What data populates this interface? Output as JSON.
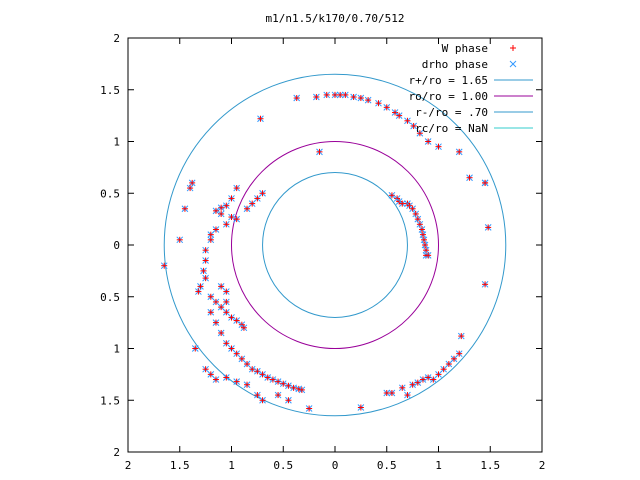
{
  "chart_data": {
    "type": "scatter",
    "title": "m1/n1.5/k170/0.70/512",
    "xlim": [
      -2,
      2
    ],
    "ylim": [
      -2,
      2
    ],
    "grid": false,
    "legend_position": "top-right",
    "x_ticks": [
      {
        "v": -2,
        "label": "2"
      },
      {
        "v": -1.5,
        "label": "1.5"
      },
      {
        "v": -1,
        "label": "1"
      },
      {
        "v": -0.5,
        "label": "0.5"
      },
      {
        "v": 0,
        "label": "0"
      },
      {
        "v": 0.5,
        "label": "0.5"
      },
      {
        "v": 1,
        "label": "1"
      },
      {
        "v": 1.5,
        "label": "1.5"
      },
      {
        "v": 2,
        "label": "2"
      }
    ],
    "y_ticks": [
      {
        "v": 2,
        "label": "2"
      },
      {
        "v": 1.5,
        "label": "1.5"
      },
      {
        "v": 1,
        "label": "1"
      },
      {
        "v": 0.5,
        "label": "0.5"
      },
      {
        "v": 0,
        "label": "0"
      },
      {
        "v": -0.5,
        "label": "0.5"
      },
      {
        "v": -1,
        "label": "1"
      },
      {
        "v": -1.5,
        "label": "1.5"
      },
      {
        "v": -2,
        "label": "2"
      }
    ],
    "circles": [
      {
        "name": "r+/ro = 1.65",
        "r": 1.65,
        "color": "#3399cc"
      },
      {
        "name": "ro/ro = 1.00",
        "r": 1.0,
        "color": "#990099"
      },
      {
        "name": "r-/ro = .70",
        "r": 0.7,
        "color": "#3399cc"
      },
      {
        "name": "rc/ro = NaN",
        "r": null,
        "color": "#33cccc"
      }
    ],
    "series": [
      {
        "name": "W phase",
        "marker": "+",
        "color": "#ff0000"
      },
      {
        "name": "drho phase",
        "marker": "x",
        "color": "#3399ff"
      }
    ],
    "points": [
      [
        -0.37,
        1.42
      ],
      [
        -0.18,
        1.43
      ],
      [
        -0.08,
        1.45
      ],
      [
        0.0,
        1.45
      ],
      [
        0.05,
        1.45
      ],
      [
        0.1,
        1.45
      ],
      [
        0.18,
        1.43
      ],
      [
        0.25,
        1.42
      ],
      [
        0.32,
        1.4
      ],
      [
        0.42,
        1.37
      ],
      [
        0.5,
        1.33
      ],
      [
        0.58,
        1.28
      ],
      [
        0.62,
        1.25
      ],
      [
        0.7,
        1.2
      ],
      [
        0.76,
        1.15
      ],
      [
        0.82,
        1.08
      ],
      [
        0.9,
        1.0
      ],
      [
        1.0,
        0.95
      ],
      [
        1.2,
        0.9
      ],
      [
        1.3,
        0.65
      ],
      [
        1.45,
        0.6
      ],
      [
        1.45,
        0.6
      ],
      [
        1.48,
        0.17
      ],
      [
        1.45,
        -0.38
      ],
      [
        -0.72,
        1.22
      ],
      [
        -0.15,
        0.9
      ],
      [
        -1.38,
        0.6
      ],
      [
        -1.4,
        0.55
      ],
      [
        -1.45,
        0.35
      ],
      [
        -1.5,
        0.05
      ],
      [
        -1.65,
        -0.2
      ],
      [
        -1.35,
        -1.0
      ],
      [
        -1.0,
        0.45
      ],
      [
        -1.05,
        0.38
      ],
      [
        -1.1,
        0.36
      ],
      [
        -1.15,
        0.33
      ],
      [
        -1.1,
        0.3
      ],
      [
        -1.0,
        0.27
      ],
      [
        -0.95,
        0.25
      ],
      [
        -1.05,
        0.2
      ],
      [
        -1.15,
        0.15
      ],
      [
        -1.2,
        0.1
      ],
      [
        -1.2,
        0.05
      ],
      [
        -1.25,
        -0.05
      ],
      [
        -1.25,
        -0.15
      ],
      [
        -1.27,
        -0.25
      ],
      [
        -1.25,
        -0.32
      ],
      [
        -1.3,
        -0.4
      ],
      [
        -1.32,
        -0.45
      ],
      [
        -0.95,
        0.55
      ],
      [
        -0.85,
        0.35
      ],
      [
        -0.8,
        0.4
      ],
      [
        -0.75,
        0.45
      ],
      [
        -0.7,
        0.5
      ],
      [
        -1.2,
        -0.5
      ],
      [
        -1.15,
        -0.55
      ],
      [
        -1.1,
        -0.6
      ],
      [
        -1.05,
        -0.65
      ],
      [
        -1.0,
        -0.7
      ],
      [
        -0.95,
        -0.73
      ],
      [
        -0.9,
        -0.77
      ],
      [
        -0.88,
        -0.8
      ],
      [
        -1.1,
        -0.4
      ],
      [
        -1.05,
        -0.45
      ],
      [
        -1.05,
        -0.55
      ],
      [
        -1.2,
        -0.65
      ],
      [
        -1.15,
        -0.75
      ],
      [
        -1.1,
        -0.85
      ],
      [
        -1.05,
        -0.95
      ],
      [
        -1.0,
        -1.0
      ],
      [
        -0.95,
        -1.05
      ],
      [
        -0.9,
        -1.1
      ],
      [
        -0.85,
        -1.15
      ],
      [
        -0.8,
        -1.2
      ],
      [
        -0.75,
        -1.22
      ],
      [
        -0.7,
        -1.25
      ],
      [
        -0.65,
        -1.28
      ],
      [
        -0.6,
        -1.3
      ],
      [
        -0.55,
        -1.32
      ],
      [
        -0.5,
        -1.34
      ],
      [
        -0.45,
        -1.36
      ],
      [
        -0.4,
        -1.38
      ],
      [
        -0.35,
        -1.39
      ],
      [
        -0.32,
        -1.4
      ],
      [
        -1.25,
        -1.2
      ],
      [
        -1.2,
        -1.25
      ],
      [
        -1.15,
        -1.3
      ],
      [
        -1.05,
        -1.28
      ],
      [
        -0.95,
        -1.32
      ],
      [
        -0.85,
        -1.35
      ],
      [
        -0.75,
        -1.45
      ],
      [
        -0.7,
        -1.5
      ],
      [
        -0.55,
        -1.45
      ],
      [
        -0.45,
        -1.5
      ],
      [
        -0.25,
        -1.58
      ],
      [
        0.25,
        -1.57
      ],
      [
        0.5,
        -1.43
      ],
      [
        0.55,
        -1.43
      ],
      [
        0.65,
        -1.38
      ],
      [
        0.7,
        -1.45
      ],
      [
        0.75,
        -1.35
      ],
      [
        0.8,
        -1.33
      ],
      [
        0.85,
        -1.3
      ],
      [
        0.9,
        -1.28
      ],
      [
        0.95,
        -1.3
      ],
      [
        1.0,
        -1.25
      ],
      [
        1.05,
        -1.2
      ],
      [
        1.1,
        -1.15
      ],
      [
        1.15,
        -1.1
      ],
      [
        1.2,
        -1.05
      ],
      [
        1.22,
        -0.88
      ],
      [
        0.55,
        0.48
      ],
      [
        0.6,
        0.45
      ],
      [
        0.62,
        0.42
      ],
      [
        0.65,
        0.4
      ],
      [
        0.7,
        0.4
      ],
      [
        0.72,
        0.38
      ],
      [
        0.75,
        0.35
      ],
      [
        0.78,
        0.3
      ],
      [
        0.8,
        0.25
      ],
      [
        0.82,
        0.2
      ],
      [
        0.84,
        0.15
      ],
      [
        0.85,
        0.1
      ],
      [
        0.86,
        0.05
      ],
      [
        0.87,
        0.0
      ],
      [
        0.88,
        -0.05
      ],
      [
        0.88,
        -0.1
      ],
      [
        0.9,
        -0.1
      ]
    ]
  }
}
